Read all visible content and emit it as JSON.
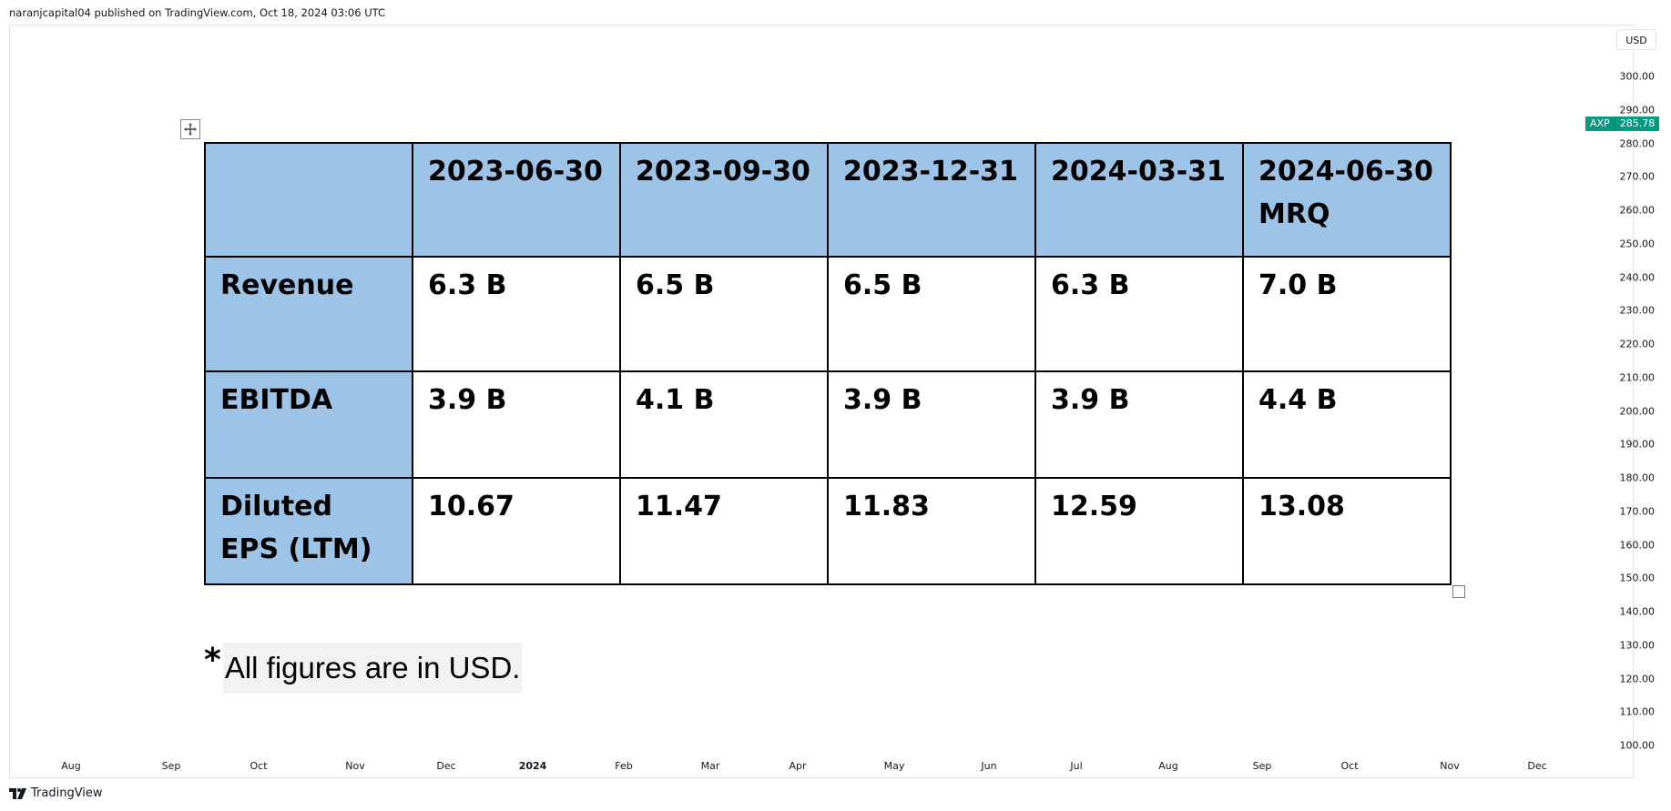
{
  "header": {
    "published_text": "naranjcapital04 published on TradingView.com, Oct 18, 2024 03:06 UTC"
  },
  "toolbar": {
    "currency_label": "USD"
  },
  "price_axis": {
    "ticks": [
      "300.00",
      "290.00",
      "280.00",
      "270.00",
      "260.00",
      "250.00",
      "240.00",
      "230.00",
      "220.00",
      "210.00",
      "200.00",
      "190.00",
      "180.00",
      "170.00",
      "160.00",
      "150.00",
      "140.00",
      "130.00",
      "120.00",
      "110.00",
      "100.00"
    ],
    "last_price": {
      "symbol": "AXP",
      "value": "285.78",
      "color": "#089981"
    }
  },
  "time_axis": {
    "ticks": [
      {
        "label": "Aug",
        "year": false
      },
      {
        "label": "Sep",
        "year": false
      },
      {
        "label": "Oct",
        "year": false
      },
      {
        "label": "Nov",
        "year": false
      },
      {
        "label": "Dec",
        "year": false
      },
      {
        "label": "2024",
        "year": true
      },
      {
        "label": "Feb",
        "year": false
      },
      {
        "label": "Mar",
        "year": false
      },
      {
        "label": "Apr",
        "year": false
      },
      {
        "label": "May",
        "year": false
      },
      {
        "label": "Jun",
        "year": false
      },
      {
        "label": "Jul",
        "year": false
      },
      {
        "label": "Aug",
        "year": false
      },
      {
        "label": "Sep",
        "year": false
      },
      {
        "label": "Oct",
        "year": false
      },
      {
        "label": "Nov",
        "year": false
      },
      {
        "label": "Dec",
        "year": false
      }
    ]
  },
  "table": {
    "header_color": "#9dc3e6",
    "header_row": [
      "",
      "2023-06-30",
      "2023-09-30",
      "2023-12-31",
      "2024-03-31",
      "2024-06-30 MRQ"
    ],
    "rows": [
      {
        "label": "Revenue",
        "values": [
          "6.3 B",
          "6.5 B",
          "6.5 B",
          "6.3 B",
          "7.0 B"
        ]
      },
      {
        "label": "EBITDA",
        "values": [
          "3.9 B",
          "4.1 B",
          "3.9 B",
          "3.9 B",
          "4.4 B"
        ]
      },
      {
        "label": "Diluted EPS (LTM)",
        "values": [
          "10.67",
          "11.47",
          "11.83",
          "12.59",
          "13.08"
        ]
      }
    ]
  },
  "note": {
    "star": "*",
    "text": "All figures are in USD."
  },
  "footer": {
    "brand": "TradingView"
  }
}
